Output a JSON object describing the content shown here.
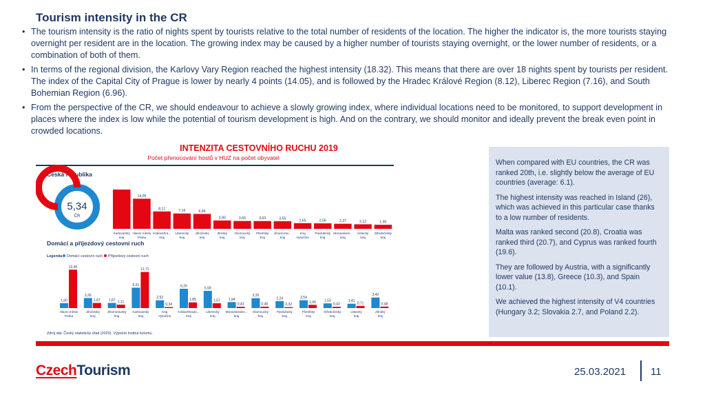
{
  "slide": {
    "title": "Tourism intensity in the CR",
    "bullets": [
      "The tourism intensity is the ratio of nights spent by tourists relative to the total number of residents of the location. The higher the indicator is, the more tourists staying overnight per resident are in the location. The growing index may be caused by a higher number of tourists staying overnight, or the lower number of residents, or a combination of both of them.",
      "In terms of the regional division, the Karlovy Vary Region reached the highest intensity (18.32). This means that there are over 18 nights spent by tourists per resident. The index of the Capital City of Prague is lower by nearly 4 points (14.05), and is followed by the Hradec Králové Region (8.12), Liberec Region (7.16), and South Bohemian Region (6.96).",
      "From the perspective of the CR, we should endeavour to achieve a slowly growing index, where individual locations need to be monitored, to support development in places where the index is low while the potential of tourism development is high. And on the contrary, we should monitor and ideally prevent the break even point in crowded locations."
    ]
  },
  "sidebar": {
    "paragraphs": [
      "When compared with EU countries, the CR was ranked 20th, i.e. slightly below the average of EU countries (average: 6.1).",
      "The highest intensity was reached in Island (26), which was achieved in this particular case thanks to a low number of residents.",
      "Malta was ranked second (20.8), Croatia was ranked third (20.7), and Cyprus was ranked fourth (19.6).",
      "They are followed by Austria, with a significantly lower value (13.8), Greece (10.3), and Spain (10.1).",
      "We achieved the highest intensity of V4 countries (Hungary 3.2; Slovakia 2.7, and Poland 2.2)."
    ]
  },
  "figure": {
    "title": "INTENZITA CESTOVNÍHO RUCHU 2019",
    "subtitle": "Počet přenocování hostů v HUZ na počet obyvatel",
    "section1_label": "Česká republika",
    "section2_label": "Domácí a příjezdový cestovní ruch",
    "source": "Zdroj dat: Český statistický úřad (2020). Výpočet Institut turismu."
  },
  "colors": {
    "accent_red": "#e30613",
    "bar_red": "#e30613",
    "bar_blue": "#1e88d0",
    "text_navy": "#1f3864",
    "sidebar_bg": "#dce3ee"
  },
  "footer": {
    "logo_part1": "Czech",
    "logo_part2": "Tourism",
    "date": "25.03.2021",
    "page_number": "11"
  },
  "chart_data": [
    {
      "type": "pie",
      "title": "Česká republika",
      "center_value": "5,34",
      "center_label": "ČR",
      "values": [
        5.34
      ],
      "colors": [
        "#e30613",
        "#1e88d0"
      ]
    },
    {
      "type": "bar",
      "title": "INTENZITA CESTOVNÍHO RUCHU 2019",
      "subtitle": "Počet přenocování hostů v HUZ na počet obyvatel",
      "categories": [
        "Karlovarský kraj",
        "Hlavní město Praha",
        "Královéhra... kraj",
        "Liberecký kraj",
        "Jihočeský kraj",
        "Zlínský kraj",
        "Olomoucký kraj",
        "Plzeňský kraj",
        "Jihomorav... kraj",
        "Kraj Vysočina",
        "Pardubický kraj",
        "Moravskosl... kraj",
        "Ústecký kraj",
        "Středočeský kraj"
      ],
      "value_labels": [
        "",
        "14,05",
        "8,12",
        "7,16",
        "6,96",
        "3,90",
        "3,66",
        "3,63",
        "3,55",
        "2,65",
        "2,56",
        "2,37",
        "2,12",
        "1,90"
      ],
      "values": [
        18.32,
        14.05,
        8.12,
        7.16,
        6.96,
        3.9,
        3.66,
        3.63,
        3.55,
        2.65,
        2.56,
        2.37,
        2.12,
        1.9
      ],
      "color": "#e30613",
      "ylim": [
        0,
        19.3
      ]
    },
    {
      "type": "bar",
      "title": "Domácí a příjezdový cestovní ruch",
      "legend_title": "Legenda",
      "categories": [
        "Hlavní město Praha",
        "Jihočeský kraj",
        "Jihomoravský kraj",
        "Karlovarský kraj",
        "Kraj Vysočina",
        "Královéhrado... kraj",
        "Liberecký kraj",
        "Moravskoslez... kraj",
        "Olomoucký kraj",
        "Pardubický kraj",
        "Plzeňský kraj",
        "Středočeský kraj",
        "Ústecký kraj",
        "Zlínský kraj"
      ],
      "series": [
        {
          "name": "Domácí cestovní ruch",
          "color": "#1e88d0",
          "values": [
            1.6,
            3.26,
            1.67,
            6.61,
            2.52,
            6.26,
            5.58,
            1.94,
            3.2,
            2.24,
            2.54,
            1.53,
            1.41,
            3.42
          ],
          "labels": [
            "1,60",
            "3,26",
            "1,67",
            "6,61",
            "2,52",
            "6,26",
            "5,58",
            "1,94",
            "3,20",
            "2,24",
            "2,54",
            "1,53",
            "1,41",
            "3,42"
          ]
        },
        {
          "name": "Příjezdový cestovní ruch",
          "color": "#e30613",
          "values": [
            12.45,
            1.67,
            1.11,
            11.71,
            0.34,
            1.85,
            1.57,
            0.43,
            0.46,
            0.32,
            1.06,
            0.43,
            0.71,
            0.48
          ],
          "labels": [
            "12,45",
            "1,67",
            "1,11",
            "11,71",
            "0,34",
            "1,85",
            "1,57",
            "0,43",
            "0,46",
            "0,32",
            "1,06",
            "0,43",
            "0,71",
            "0,48"
          ]
        }
      ],
      "ylim": [
        0,
        13.4
      ]
    }
  ]
}
